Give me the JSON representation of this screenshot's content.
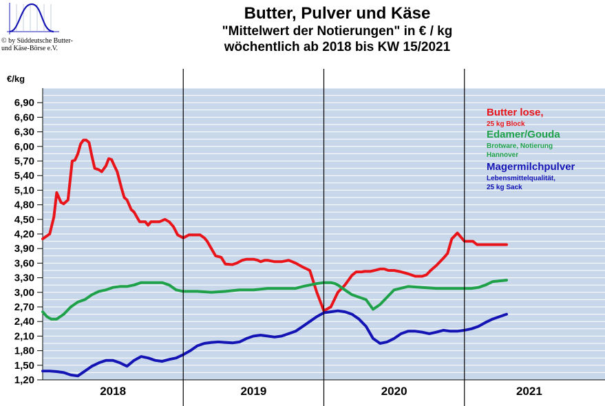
{
  "header": {
    "title": "Butter, Pulver und Käse",
    "subtitle": "\"Mittelwert der Notierungen\" in € / kg",
    "subtitle2": "wöchentlich ab 2018 bis KW 15/2021",
    "copyright_line1": "© by Süddeutsche Butter-",
    "copyright_line2": "und Käse-Börse e.V.",
    "logo_icon": "sine-wave-logo-icon"
  },
  "chart_data": {
    "type": "line",
    "title": "Butter, Pulver und Käse",
    "ylabel": "€/kg",
    "ylim": [
      1.2,
      7.2
    ],
    "yticks": [
      "1,20",
      "1,50",
      "1,80",
      "2,10",
      "2,40",
      "2,70",
      "3,00",
      "3,30",
      "3,60",
      "3,90",
      "4,20",
      "4,50",
      "4,80",
      "5,10",
      "5,40",
      "5,70",
      "6,00",
      "6,30",
      "6,60",
      "6,90"
    ],
    "xlim": [
      2018.0,
      2022.0
    ],
    "x_year_labels": [
      "2018",
      "2019",
      "2020",
      "2021"
    ],
    "grid": true,
    "legend_position": "top-right",
    "legend": [
      {
        "name": "Butter lose,",
        "detail1": "25 kg Block",
        "detail2": ""
      },
      {
        "name": "Edamer/Gouda",
        "detail1": "Brotware, Notierung",
        "detail2": "Hannover"
      },
      {
        "name": "Magermilchpulver",
        "detail1": "Lebensmittelqualität,",
        "detail2": " 25 kg Sack"
      }
    ],
    "colors": {
      "butter": "#e8141a",
      "cheese": "#1fa14a",
      "powder": "#1414b4",
      "plot_bg": "#c8d8ea",
      "grid": "#ffffff"
    },
    "series": [
      {
        "key": "butter",
        "x": [
          2018.0,
          2018.05,
          2018.08,
          2018.1,
          2018.13,
          2018.15,
          2018.18,
          2018.21,
          2018.23,
          2018.25,
          2018.27,
          2018.29,
          2018.31,
          2018.33,
          2018.35,
          2018.37,
          2018.4,
          2018.42,
          2018.45,
          2018.47,
          2018.49,
          2018.51,
          2018.53,
          2018.56,
          2018.58,
          2018.6,
          2018.63,
          2018.65,
          2018.67,
          2018.69,
          2018.71,
          2018.73,
          2018.75,
          2018.77,
          2018.8,
          2018.83,
          2018.87,
          2018.9,
          2018.93,
          2018.96,
          2019.0,
          2019.04,
          2019.08,
          2019.12,
          2019.15,
          2019.17,
          2019.2,
          2019.23,
          2019.27,
          2019.3,
          2019.35,
          2019.38,
          2019.42,
          2019.45,
          2019.48,
          2019.5,
          2019.53,
          2019.55,
          2019.58,
          2019.6,
          2019.65,
          2019.7,
          2019.75,
          2019.8,
          2019.85,
          2019.9,
          2019.95,
          2020.0,
          2020.05,
          2020.1,
          2020.15,
          2020.2,
          2020.23,
          2020.25,
          2020.27,
          2020.29,
          2020.31,
          2020.33,
          2020.36,
          2020.4,
          2020.43,
          2020.46,
          2020.5,
          2020.55,
          2020.6,
          2020.65,
          2020.7,
          2020.73,
          2020.76,
          2020.8,
          2020.85,
          2020.88,
          2020.91,
          2020.95,
          2021.0,
          2021.03,
          2021.06,
          2021.09,
          2021.12,
          2021.15,
          2021.18,
          2021.21,
          2021.23,
          2021.26,
          2021.3
        ],
        "values": [
          4.1,
          4.2,
          4.55,
          5.05,
          4.85,
          4.82,
          4.9,
          5.7,
          5.72,
          5.85,
          6.05,
          6.13,
          6.13,
          6.08,
          5.8,
          5.55,
          5.52,
          5.48,
          5.6,
          5.75,
          5.73,
          5.6,
          5.48,
          5.15,
          4.95,
          4.9,
          4.7,
          4.65,
          4.55,
          4.45,
          4.45,
          4.45,
          4.38,
          4.45,
          4.45,
          4.45,
          4.5,
          4.45,
          4.35,
          4.18,
          4.12,
          4.18,
          4.18,
          4.18,
          4.12,
          4.05,
          3.9,
          3.75,
          3.72,
          3.58,
          3.57,
          3.6,
          3.66,
          3.68,
          3.68,
          3.68,
          3.66,
          3.63,
          3.66,
          3.66,
          3.63,
          3.63,
          3.66,
          3.6,
          3.52,
          3.45,
          3.0,
          2.62,
          2.7,
          3.0,
          3.15,
          3.35,
          3.42,
          3.42,
          3.42,
          3.43,
          3.43,
          3.43,
          3.45,
          3.48,
          3.48,
          3.45,
          3.45,
          3.42,
          3.38,
          3.33,
          3.33,
          3.36,
          3.45,
          3.55,
          3.7,
          3.8,
          4.1,
          4.22,
          4.05,
          4.05,
          4.05,
          3.98,
          3.98,
          3.98,
          3.98,
          3.98,
          3.98,
          3.98,
          3.98
        ]
      },
      {
        "key": "cheese",
        "x": [
          2018.0,
          2018.03,
          2018.06,
          2018.1,
          2018.15,
          2018.2,
          2018.25,
          2018.3,
          2018.35,
          2018.4,
          2018.45,
          2018.5,
          2018.55,
          2018.6,
          2018.65,
          2018.7,
          2018.75,
          2018.8,
          2018.85,
          2018.9,
          2018.95,
          2019.0,
          2019.1,
          2019.2,
          2019.3,
          2019.4,
          2019.5,
          2019.6,
          2019.7,
          2019.8,
          2019.85,
          2019.9,
          2019.95,
          2020.0,
          2020.05,
          2020.08,
          2020.1,
          2020.15,
          2020.2,
          2020.25,
          2020.3,
          2020.35,
          2020.4,
          2020.5,
          2020.6,
          2020.7,
          2020.8,
          2020.9,
          2020.95,
          2021.0,
          2021.05,
          2021.1,
          2021.15,
          2021.2,
          2021.3
        ],
        "values": [
          2.6,
          2.5,
          2.45,
          2.45,
          2.55,
          2.7,
          2.8,
          2.85,
          2.95,
          3.02,
          3.05,
          3.1,
          3.12,
          3.12,
          3.15,
          3.2,
          3.2,
          3.2,
          3.2,
          3.15,
          3.05,
          3.02,
          3.02,
          3.0,
          3.02,
          3.05,
          3.05,
          3.08,
          3.08,
          3.08,
          3.12,
          3.15,
          3.18,
          3.2,
          3.2,
          3.18,
          3.15,
          3.05,
          2.95,
          2.9,
          2.85,
          2.65,
          2.75,
          3.05,
          3.12,
          3.1,
          3.08,
          3.08,
          3.08,
          3.08,
          3.08,
          3.1,
          3.15,
          3.22,
          3.25
        ]
      },
      {
        "key": "powder",
        "x": [
          2018.0,
          2018.05,
          2018.1,
          2018.15,
          2018.2,
          2018.25,
          2018.3,
          2018.35,
          2018.4,
          2018.45,
          2018.5,
          2018.55,
          2018.6,
          2018.65,
          2018.7,
          2018.75,
          2018.8,
          2018.85,
          2018.9,
          2018.95,
          2019.0,
          2019.05,
          2019.1,
          2019.15,
          2019.2,
          2019.25,
          2019.3,
          2019.35,
          2019.4,
          2019.45,
          2019.5,
          2019.55,
          2019.6,
          2019.65,
          2019.7,
          2019.75,
          2019.8,
          2019.85,
          2019.9,
          2019.95,
          2020.0,
          2020.05,
          2020.1,
          2020.15,
          2020.2,
          2020.25,
          2020.3,
          2020.35,
          2020.4,
          2020.45,
          2020.5,
          2020.55,
          2020.6,
          2020.65,
          2020.7,
          2020.75,
          2020.8,
          2020.85,
          2020.9,
          2020.95,
          2021.0,
          2021.05,
          2021.1,
          2021.15,
          2021.2,
          2021.25,
          2021.3
        ],
        "values": [
          1.38,
          1.38,
          1.37,
          1.35,
          1.3,
          1.28,
          1.38,
          1.48,
          1.55,
          1.6,
          1.6,
          1.55,
          1.48,
          1.6,
          1.68,
          1.65,
          1.6,
          1.58,
          1.62,
          1.65,
          1.72,
          1.8,
          1.9,
          1.95,
          1.97,
          1.98,
          1.97,
          1.96,
          1.98,
          2.05,
          2.1,
          2.12,
          2.1,
          2.08,
          2.1,
          2.15,
          2.2,
          2.3,
          2.4,
          2.5,
          2.58,
          2.6,
          2.62,
          2.6,
          2.55,
          2.45,
          2.3,
          2.05,
          1.95,
          1.98,
          2.05,
          2.15,
          2.2,
          2.2,
          2.18,
          2.15,
          2.18,
          2.22,
          2.2,
          2.2,
          2.22,
          2.25,
          2.3,
          2.38,
          2.45,
          2.5,
          2.55
        ]
      }
    ]
  }
}
